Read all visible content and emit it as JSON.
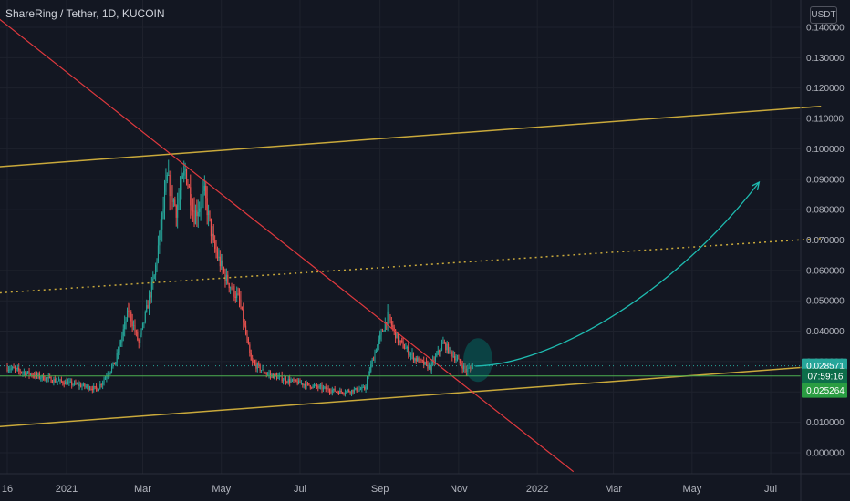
{
  "header": {
    "title": "ShareRing / Tether, 1D, KUCOIN",
    "currency": "USDT"
  },
  "colors": {
    "background": "#131722",
    "up": "#26a69a",
    "down": "#ef5350",
    "channel": "#c9a93b",
    "downtrend": "#e0393e",
    "projection": "#1ebbb0",
    "horizontal": "#4caf50"
  },
  "chart_data": {
    "type": "candlestick",
    "title": "ShareRing / Tether, 1D, KUCOIN",
    "ylabel": "USDT",
    "ylim": [
      -0.006,
      0.145
    ],
    "y_ticks": [
      "0.000000",
      "0.010000",
      "0.020000",
      "0.030000",
      "0.040000",
      "0.050000",
      "0.060000",
      "0.070000",
      "0.080000",
      "0.090000",
      "0.100000",
      "0.110000",
      "0.120000",
      "0.130000",
      "0.140000"
    ],
    "x_ticks": [
      "16",
      "2021",
      "Mar",
      "May",
      "Jul",
      "Sep",
      "Nov",
      "2022",
      "Mar",
      "May",
      "Jul"
    ],
    "price_anchors": [
      {
        "x": "2020-11-16",
        "y": 0.028
      },
      {
        "x": "2020-12-20",
        "y": 0.024
      },
      {
        "x": "2021-01-25",
        "y": 0.021
      },
      {
        "x": "2021-02-08",
        "y": 0.03
      },
      {
        "x": "2021-02-18",
        "y": 0.047
      },
      {
        "x": "2021-02-26",
        "y": 0.036
      },
      {
        "x": "2021-03-10",
        "y": 0.058
      },
      {
        "x": "2021-03-20",
        "y": 0.09
      },
      {
        "x": "2021-03-27",
        "y": 0.08
      },
      {
        "x": "2021-04-03",
        "y": 0.093
      },
      {
        "x": "2021-04-10",
        "y": 0.078
      },
      {
        "x": "2021-04-18",
        "y": 0.085
      },
      {
        "x": "2021-04-25",
        "y": 0.068
      },
      {
        "x": "2021-05-05",
        "y": 0.057
      },
      {
        "x": "2021-05-15",
        "y": 0.05
      },
      {
        "x": "2021-05-24",
        "y": 0.03
      },
      {
        "x": "2021-06-05",
        "y": 0.026
      },
      {
        "x": "2021-06-20",
        "y": 0.024
      },
      {
        "x": "2021-07-10",
        "y": 0.022
      },
      {
        "x": "2021-08-01",
        "y": 0.02
      },
      {
        "x": "2021-08-20",
        "y": 0.021
      },
      {
        "x": "2021-08-28",
        "y": 0.033
      },
      {
        "x": "2021-09-07",
        "y": 0.045
      },
      {
        "x": "2021-09-15",
        "y": 0.037
      },
      {
        "x": "2021-09-28",
        "y": 0.031
      },
      {
        "x": "2021-10-10",
        "y": 0.028
      },
      {
        "x": "2021-10-20",
        "y": 0.036
      },
      {
        "x": "2021-10-30",
        "y": 0.031
      },
      {
        "x": "2021-11-07",
        "y": 0.027
      },
      {
        "x": "2021-11-12",
        "y": 0.0286
      }
    ],
    "annotations": {
      "upper_channel": [
        {
          "x": "2020-11-06",
          "y": 0.094
        },
        {
          "x": "2022-08-09",
          "y": 0.114
        }
      ],
      "mid_channel": [
        {
          "x": "2020-11-06",
          "y": 0.0525
        },
        {
          "x": "2022-08-09",
          "y": 0.0705
        }
      ],
      "lower_channel": [
        {
          "x": "2020-11-06",
          "y": 0.0085
        },
        {
          "x": "2022-08-09",
          "y": 0.0285
        }
      ],
      "downtrend": [
        {
          "x": "2020-11-06",
          "y": 0.144
        },
        {
          "x": "2022-01-29",
          "y": -0.0062
        }
      ],
      "support_level": 0.02525,
      "projection_curve": [
        {
          "x": "2021-11-14",
          "y": 0.0285
        },
        {
          "x": "2022-01-08",
          "y": 0.029
        },
        {
          "x": "2022-04-12",
          "y": 0.05
        },
        {
          "x": "2022-06-22",
          "y": 0.089
        }
      ]
    },
    "price_labels": [
      {
        "label": "0.028571",
        "value": 0.028571,
        "color": "#26a69a"
      },
      {
        "label": "07:59:16",
        "value": 0.02525,
        "color": "#0d6e4a"
      },
      {
        "label": "0.025264",
        "value": 0.0205,
        "color": "#2a9d42"
      }
    ]
  }
}
